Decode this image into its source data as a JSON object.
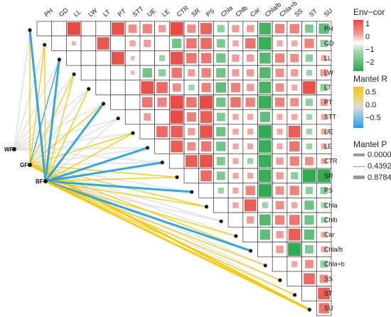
{
  "chart_data": {
    "type": "heatmap",
    "variables": [
      "PH",
      "GD",
      "LL",
      "LW",
      "LT",
      "PT",
      "STT",
      "UE",
      "LE",
      "CTR",
      "SR",
      "PS",
      "Chla",
      "Chlb",
      "Car",
      "Chla/b",
      "Chla+b",
      "SS",
      "ST",
      "SU"
    ],
    "correlation_matrix_upper": [
      [
        "PH",
        "LL",
        0.95
      ],
      [
        "PH",
        "PT",
        0.9
      ],
      [
        "PH",
        "STT",
        0.4
      ],
      [
        "PH",
        "UE",
        0.5
      ],
      [
        "PH",
        "LE",
        0.3
      ],
      [
        "PH",
        "CTR",
        0.95
      ],
      [
        "PH",
        "SR",
        0.4
      ],
      [
        "PH",
        "PS",
        0.75
      ],
      [
        "PH",
        "Chla",
        -0.3
      ],
      [
        "PH",
        "Chlb",
        0.3
      ],
      [
        "PH",
        "Car",
        0.3
      ],
      [
        "PH",
        "Chla/b",
        -0.8
      ],
      [
        "PH",
        "Chla+b",
        0.5
      ],
      [
        "PH",
        "SS",
        0.5
      ],
      [
        "PH",
        "ST",
        -0.4
      ],
      [
        "PH",
        "SU",
        -0.6
      ],
      [
        "GD",
        "LL",
        0.1
      ],
      [
        "GD",
        "LT",
        0.85
      ],
      [
        "GD",
        "STT",
        0.2
      ],
      [
        "GD",
        "UE",
        0.3
      ],
      [
        "GD",
        "CTR",
        -0.5
      ],
      [
        "GD",
        "SR",
        0.6
      ],
      [
        "GD",
        "PS",
        0.7
      ],
      [
        "GD",
        "Chla",
        -0.4
      ],
      [
        "GD",
        "Chlb",
        0.2
      ],
      [
        "GD",
        "Car",
        0.6
      ],
      [
        "GD",
        "Chla/b",
        -0.9
      ],
      [
        "GD",
        "Chla+b",
        0.2
      ],
      [
        "GD",
        "SS",
        0.2
      ],
      [
        "GD",
        "ST",
        0.5
      ],
      [
        "GD",
        "SU",
        -0.3
      ],
      [
        "LL",
        "PT",
        0.9
      ],
      [
        "LL",
        "STT",
        0.1
      ],
      [
        "LL",
        "LE",
        -0.2
      ],
      [
        "LL",
        "CTR",
        0.9
      ],
      [
        "LL",
        "SR",
        0.6
      ],
      [
        "LL",
        "PS",
        0.6
      ],
      [
        "LL",
        "Chla",
        -0.5
      ],
      [
        "LL",
        "Chlb",
        0.3
      ],
      [
        "LL",
        "Car",
        0.3
      ],
      [
        "LL",
        "Chla/b",
        -0.7
      ],
      [
        "LL",
        "Chla+b",
        0.5
      ],
      [
        "LL",
        "SS",
        0.4
      ],
      [
        "LL",
        "ST",
        -0.3
      ],
      [
        "LL",
        "SU",
        0.2
      ],
      [
        "LW",
        "STT",
        0.1
      ],
      [
        "LW",
        "UE",
        -0.5
      ],
      [
        "LW",
        "LE",
        -0.3
      ],
      [
        "LW",
        "CTR",
        0.6
      ],
      [
        "LW",
        "SR",
        0.3
      ],
      [
        "LW",
        "PS",
        0.5
      ],
      [
        "LW",
        "Chla",
        -0.5
      ],
      [
        "LW",
        "Chlb",
        0.3
      ],
      [
        "LW",
        "Car",
        0.3
      ],
      [
        "LW",
        "Chla/b",
        -0.7
      ],
      [
        "LW",
        "Chla+b",
        0.4
      ],
      [
        "LW",
        "SS",
        0.3
      ],
      [
        "LW",
        "ST",
        -0.2
      ],
      [
        "LW",
        "SU",
        0.3
      ],
      [
        "LT",
        "UE",
        0.9
      ],
      [
        "LT",
        "LE",
        0.7
      ],
      [
        "LT",
        "CTR",
        0.4
      ],
      [
        "LT",
        "SR",
        -0.2
      ],
      [
        "LT",
        "PS",
        0.5
      ],
      [
        "LT",
        "Chla",
        -0.6
      ],
      [
        "LT",
        "Chlb",
        0.5
      ],
      [
        "LT",
        "Car",
        0.3
      ],
      [
        "LT",
        "Chla/b",
        -0.8
      ],
      [
        "LT",
        "Chla+b",
        0.4
      ],
      [
        "LT",
        "SS",
        0.2
      ],
      [
        "LT",
        "ST",
        0.9
      ],
      [
        "LT",
        "SU",
        -0.3
      ],
      [
        "PT",
        "UE",
        0.6
      ],
      [
        "PT",
        "LE",
        0.5
      ],
      [
        "PT",
        "CTR",
        0.95
      ],
      [
        "PT",
        "SR",
        0.6
      ],
      [
        "PT",
        "PS",
        0.95
      ],
      [
        "PT",
        "Chla",
        -0.5
      ],
      [
        "PT",
        "Chlb",
        0.6
      ],
      [
        "PT",
        "Car",
        0.5
      ],
      [
        "PT",
        "Chla/b",
        -0.9
      ],
      [
        "PT",
        "Chla+b",
        0.5
      ],
      [
        "PT",
        "SS",
        0.4
      ],
      [
        "PT",
        "ST",
        -0.3
      ],
      [
        "PT",
        "SU",
        0.3
      ],
      [
        "STT",
        "UE",
        0.3
      ],
      [
        "STT",
        "CTR",
        0.95
      ],
      [
        "STT",
        "SR",
        0.5
      ],
      [
        "STT",
        "PS",
        0.8
      ],
      [
        "STT",
        "Chla",
        -0.4
      ],
      [
        "STT",
        "Chlb",
        0.2
      ],
      [
        "STT",
        "Car",
        0.2
      ],
      [
        "STT",
        "Chla/b",
        -0.6
      ],
      [
        "STT",
        "Chla+b",
        0.2
      ],
      [
        "STT",
        "SS",
        0.2
      ],
      [
        "STT",
        "ST",
        -0.2
      ],
      [
        "STT",
        "SU",
        0.2
      ],
      [
        "UE",
        "LE",
        0.7
      ],
      [
        "UE",
        "CTR",
        0.8
      ],
      [
        "UE",
        "SR",
        0.3
      ],
      [
        "UE",
        "PS",
        0.9
      ],
      [
        "UE",
        "Chla",
        -0.5
      ],
      [
        "UE",
        "Chlb",
        0.2
      ],
      [
        "UE",
        "Car",
        0.2
      ],
      [
        "UE",
        "Chla/b",
        -0.95
      ],
      [
        "UE",
        "Chla+b",
        0.2
      ],
      [
        "UE",
        "SS",
        0.8
      ],
      [
        "UE",
        "ST",
        -0.2
      ],
      [
        "UE",
        "SU",
        0.2
      ],
      [
        "LE",
        "CTR",
        0.8
      ],
      [
        "LE",
        "SR",
        0.4
      ],
      [
        "LE",
        "PS",
        0.6
      ],
      [
        "LE",
        "Chla",
        -0.5
      ],
      [
        "LE",
        "Chlb",
        0.2
      ],
      [
        "LE",
        "Car",
        0.2
      ],
      [
        "LE",
        "Chla/b",
        -0.9
      ],
      [
        "LE",
        "Chla+b",
        0.2
      ],
      [
        "LE",
        "SS",
        0.6
      ],
      [
        "LE",
        "ST",
        -0.2
      ],
      [
        "LE",
        "SU",
        0.2
      ],
      [
        "CTR",
        "SR",
        0.8
      ],
      [
        "CTR",
        "PS",
        0.9
      ],
      [
        "CTR",
        "Chla",
        -0.4
      ],
      [
        "CTR",
        "Chlb",
        0.2
      ],
      [
        "CTR",
        "Car",
        -0.2
      ],
      [
        "CTR",
        "Chla/b",
        -0.9
      ],
      [
        "CTR",
        "Chla+b",
        0.3
      ],
      [
        "CTR",
        "SS",
        0.5
      ],
      [
        "CTR",
        "ST",
        0.4
      ],
      [
        "CTR",
        "SU",
        0.2
      ],
      [
        "SR",
        "PS",
        0.7
      ],
      [
        "SR",
        "Chla",
        -0.4
      ],
      [
        "SR",
        "Chlb",
        0.2
      ],
      [
        "SR",
        "Car",
        0.2
      ],
      [
        "SR",
        "Chla/b",
        -0.9
      ],
      [
        "SR",
        "Chla+b",
        0.3
      ],
      [
        "SR",
        "SS",
        -0.3
      ],
      [
        "SR",
        "ST",
        -0.95
      ],
      [
        "SR",
        "SU",
        -0.95
      ],
      [
        "PS",
        "Chla",
        -0.2
      ],
      [
        "PS",
        "Chlb",
        0.2
      ],
      [
        "PS",
        "Car",
        0.5
      ],
      [
        "PS",
        "Chla/b",
        -0.95
      ],
      [
        "PS",
        "Chla+b",
        0.4
      ],
      [
        "PS",
        "SS",
        0.5
      ],
      [
        "PS",
        "ST",
        -0.3
      ],
      [
        "PS",
        "SU",
        -0.3
      ],
      [
        "Chla",
        "Chlb",
        0.2
      ],
      [
        "Chla",
        "Car",
        0.8
      ],
      [
        "Chla",
        "Chla/b",
        -0.2
      ],
      [
        "Chla",
        "Chla+b",
        0.4
      ],
      [
        "Chla",
        "SS",
        0.2
      ],
      [
        "Chla",
        "ST",
        -0.5
      ],
      [
        "Chla",
        "SU",
        -0.2
      ],
      [
        "Chlb",
        "Car",
        0.3
      ],
      [
        "Chlb",
        "Chla/b",
        -0.7
      ],
      [
        "Chlb",
        "Chla+b",
        0.5
      ],
      [
        "Chlb",
        "SS",
        0.6
      ],
      [
        "Chlb",
        "ST",
        -0.5
      ],
      [
        "Chlb",
        "SU",
        -0.2
      ],
      [
        "Car",
        "Chla/b",
        -0.6
      ],
      [
        "Car",
        "Chla+b",
        0.3
      ],
      [
        "Car",
        "SS",
        0.8
      ],
      [
        "Car",
        "ST",
        -0.6
      ],
      [
        "Car",
        "SU",
        0.2
      ],
      [
        "Chla/b",
        "Chla+b",
        0.3
      ],
      [
        "Chla/b",
        "SS",
        -0.95
      ],
      [
        "Chla/b",
        "ST",
        -0.4
      ],
      [
        "Chla/b",
        "SU",
        0.2
      ],
      [
        "Chla+b",
        "SS",
        0.2
      ],
      [
        "Chla+b",
        "ST",
        0.4
      ],
      [
        "Chla+b",
        "SU",
        -0.3
      ],
      [
        "SS",
        "ST",
        0.7
      ],
      [
        "SS",
        "SU",
        0.4
      ],
      [
        "ST",
        "SU",
        0.8
      ],
      [
        "SU",
        "SU",
        0.6
      ]
    ],
    "mantel_nodes": [
      "WF",
      "GF",
      "BF"
    ],
    "mantel_links": [
      [
        "WF",
        "PH",
        -0.1,
        0.8784
      ],
      [
        "WF",
        "GD",
        -0.1,
        0.8784
      ],
      [
        "WF",
        "LL",
        -0.1,
        0.8784
      ],
      [
        "WF",
        "LW",
        -0.1,
        0.8784
      ],
      [
        "WF",
        "LT",
        -0.1,
        0.8784
      ],
      [
        "WF",
        "PT",
        -0.1,
        0.8784
      ],
      [
        "WF",
        "STT",
        -0.1,
        0.8784
      ],
      [
        "WF",
        "UE",
        -0.1,
        0.8784
      ],
      [
        "WF",
        "LE",
        -0.1,
        0.8784
      ],
      [
        "WF",
        "CTR",
        -0.1,
        0.8784
      ],
      [
        "GF",
        "PH",
        0.5,
        0.4392
      ],
      [
        "GF",
        "GD",
        0.5,
        0.4392
      ],
      [
        "GF",
        "LL",
        -0.5,
        0.4392
      ],
      [
        "GF",
        "LW",
        0.5,
        0.4392
      ],
      [
        "GF",
        "LT",
        0.1,
        0.8784
      ],
      [
        "GF",
        "PT",
        0.5,
        0.4392
      ],
      [
        "GF",
        "STT",
        0.1,
        0.8784
      ],
      [
        "GF",
        "UE",
        0.5,
        0.4392
      ],
      [
        "GF",
        "LE",
        0.1,
        0.8784
      ],
      [
        "GF",
        "CTR",
        0.1,
        0.8784
      ],
      [
        "GF",
        "SR",
        0.5,
        0.4392
      ],
      [
        "GF",
        "PS",
        0.1,
        0.8784
      ],
      [
        "GF",
        "Chla",
        0.5,
        0.4392
      ],
      [
        "GF",
        "Chlb",
        0.1,
        0.8784
      ],
      [
        "GF",
        "Car",
        0.1,
        0.8784
      ],
      [
        "GF",
        "Chla/b",
        0.5,
        0.4392
      ],
      [
        "GF",
        "Chla+b",
        0.1,
        0.8784
      ],
      [
        "GF",
        "SS",
        0.1,
        0.8784
      ],
      [
        "GF",
        "ST",
        0.1,
        0.8784
      ],
      [
        "GF",
        "SU",
        0.5,
        0.0
      ],
      [
        "BF",
        "PH",
        -0.5,
        0.0
      ],
      [
        "BF",
        "GD",
        0.5,
        0.4392
      ],
      [
        "BF",
        "LL",
        -0.5,
        0.0
      ],
      [
        "BF",
        "LW",
        0.5,
        0.4392
      ],
      [
        "BF",
        "LT",
        0.5,
        0.4392
      ],
      [
        "BF",
        "PT",
        -0.5,
        0.0
      ],
      [
        "BF",
        "STT",
        0.1,
        0.8784
      ],
      [
        "BF",
        "UE",
        0.5,
        0.4392
      ],
      [
        "BF",
        "LE",
        -0.5,
        0.0
      ],
      [
        "BF",
        "CTR",
        -0.5,
        0.0
      ],
      [
        "BF",
        "SR",
        0.5,
        0.4392
      ],
      [
        "BF",
        "PS",
        -0.5,
        0.0
      ],
      [
        "BF",
        "Chla",
        0.5,
        0.4392
      ],
      [
        "BF",
        "Chlb",
        0.1,
        0.8784
      ],
      [
        "BF",
        "Car",
        0.5,
        0.4392
      ],
      [
        "BF",
        "Chla/b",
        -0.5,
        0.0
      ],
      [
        "BF",
        "Chla+b",
        0.5,
        0.4392
      ],
      [
        "BF",
        "SS",
        0.5,
        0.4392
      ],
      [
        "BF",
        "ST",
        0.5,
        0.4392
      ],
      [
        "BF",
        "SU",
        0.5,
        0.0
      ]
    ],
    "legend": {
      "env_cor_title": "Env−cor",
      "env_cor_ticks": [
        "1",
        "0",
        "−1",
        "−2"
      ],
      "mantel_r_title": "Mantel R",
      "mantel_r_ticks": [
        "0.5",
        "0.0",
        "−0.5"
      ],
      "mantel_p_title": "Mantel P",
      "mantel_p_ticks": [
        "0.0000",
        "0.4392",
        "0.8784"
      ]
    },
    "colors": {
      "positive": "#e8453c",
      "negative": "#2aa84a",
      "r_high": "#f5c500",
      "r_mid": "#d9d9d9",
      "r_low": "#1a9ee6"
    }
  }
}
